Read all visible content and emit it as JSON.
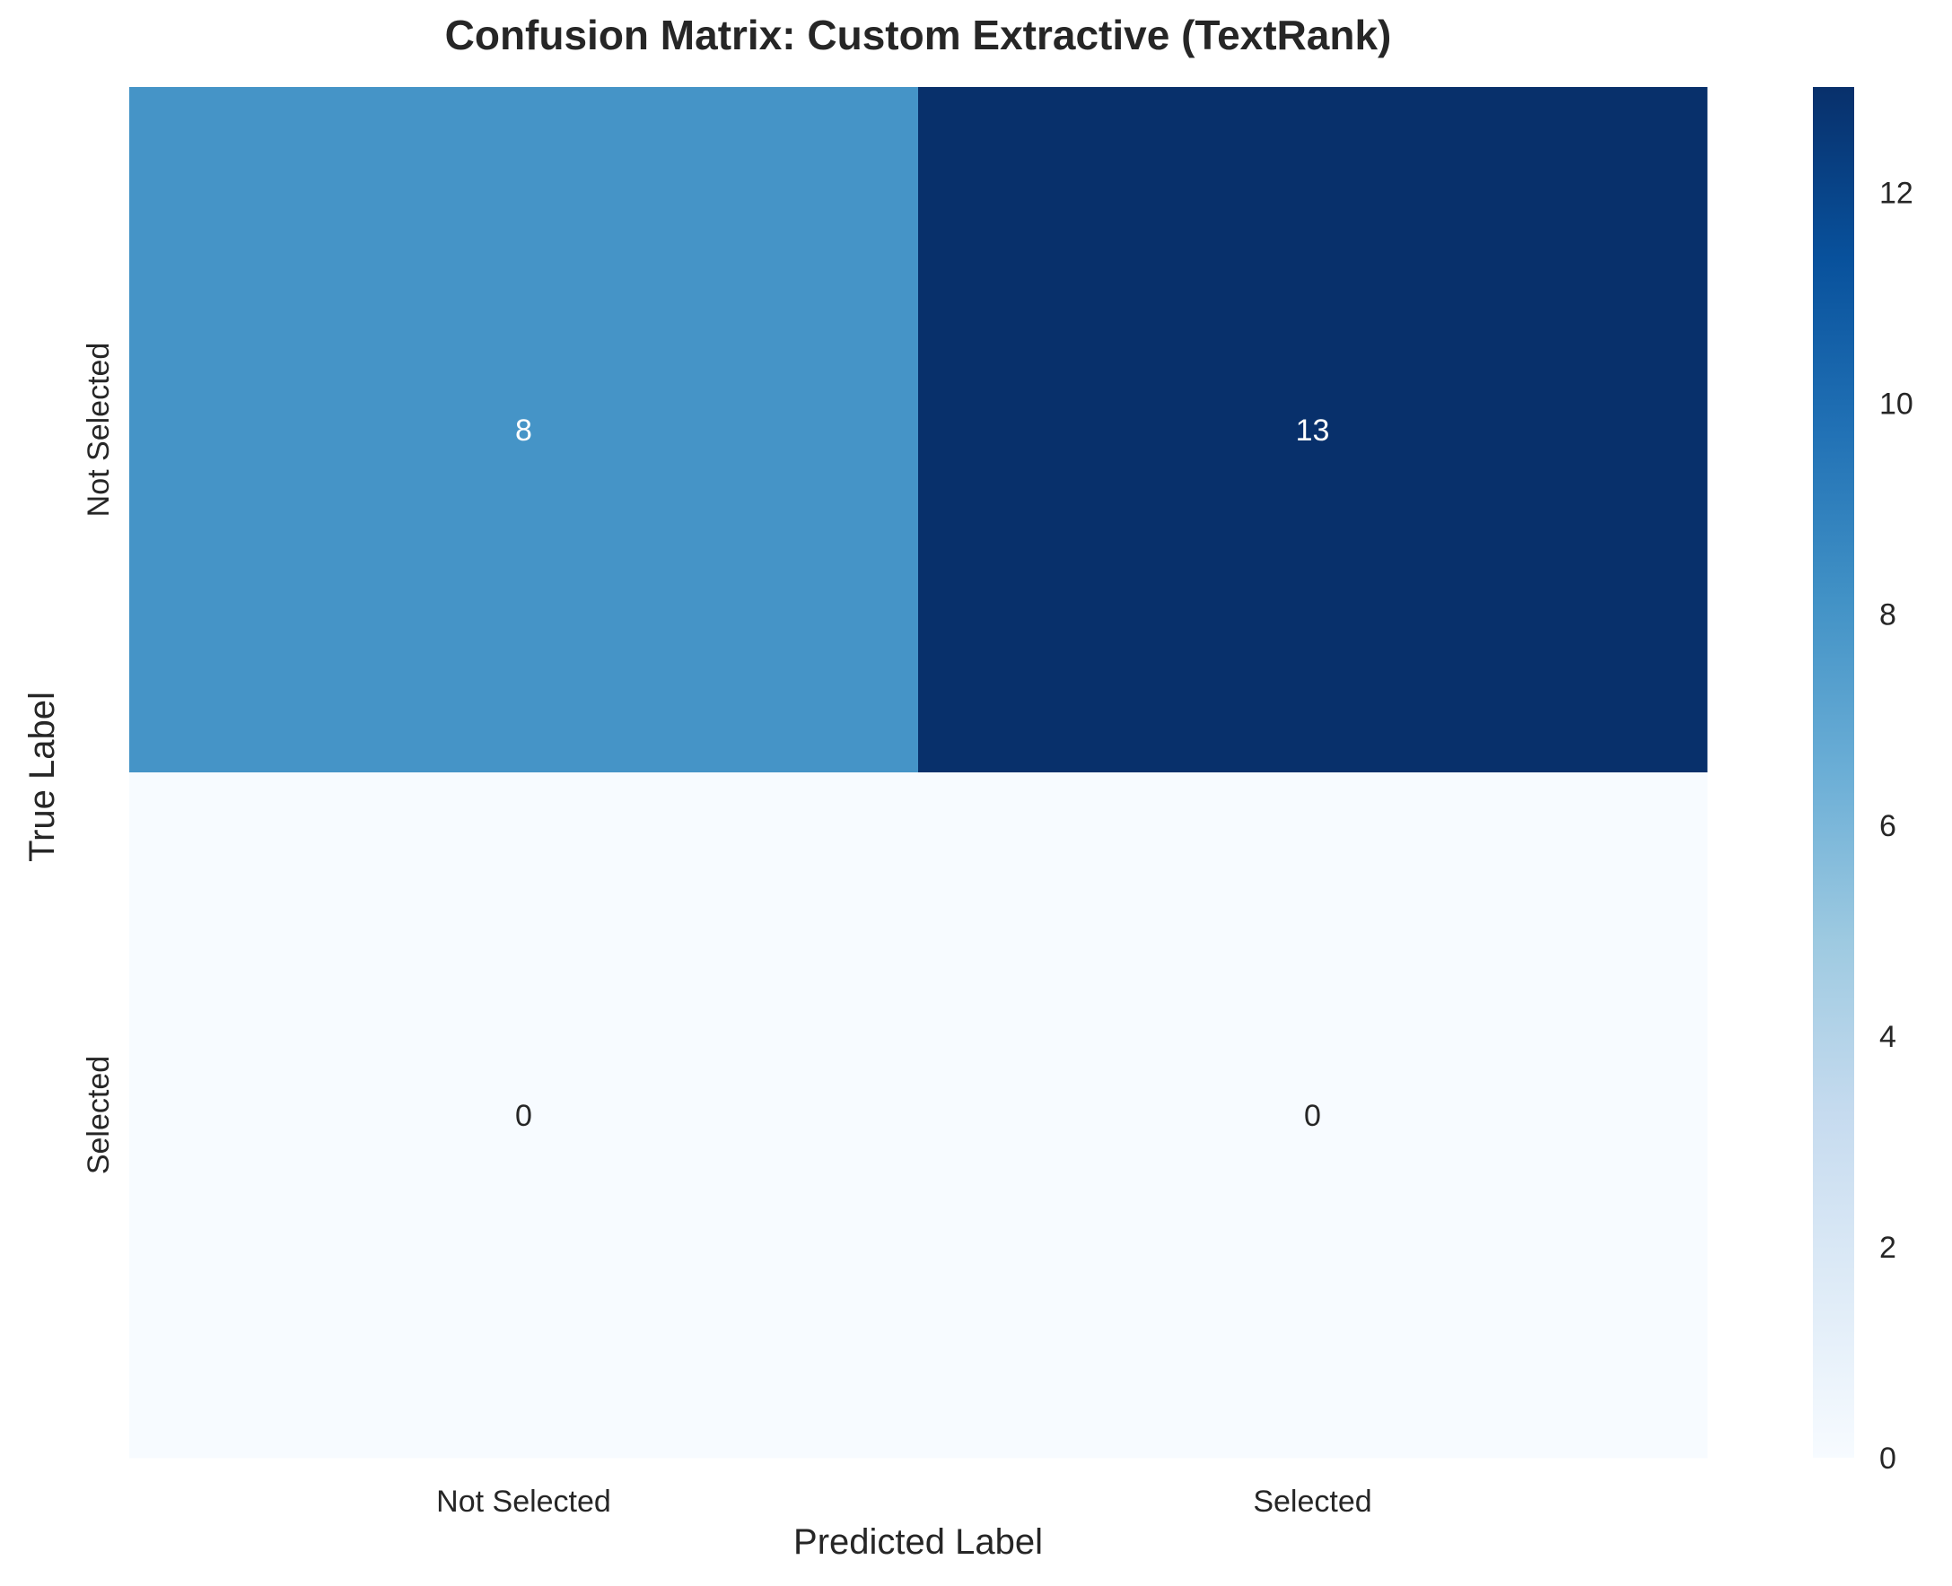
{
  "chart_data": {
    "type": "heatmap",
    "title": "Confusion Matrix: Custom Extractive (TextRank)",
    "xlabel": "Predicted Label",
    "ylabel": "True Label",
    "x_categories": [
      "Not Selected",
      "Selected"
    ],
    "y_categories": [
      "Not Selected",
      "Selected"
    ],
    "values": [
      [
        8,
        13
      ],
      [
        0,
        0
      ]
    ],
    "colormap": "Blues",
    "colorbar": {
      "min": 0,
      "max": 13,
      "ticks": [
        0,
        2,
        4,
        6,
        8,
        10,
        12
      ]
    },
    "colorbar_stops": [
      "#f7fbff",
      "#deebf7",
      "#c6dbef",
      "#9ecae1",
      "#6baed6",
      "#4292c6",
      "#2171b5",
      "#08519c",
      "#08306b"
    ]
  }
}
